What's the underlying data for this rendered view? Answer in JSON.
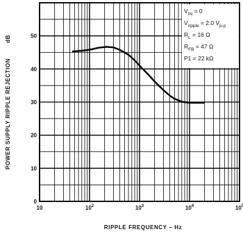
{
  "chart_data": {
    "type": "line",
    "title": "",
    "xlabel": "RIPPLE FREQUENCY – Hz",
    "ylabel": "POWER SUPPLY RIPPLE REJECTION",
    "ylabel_unit": "dB",
    "x_scale": "log",
    "xlim": [
      10,
      100000
    ],
    "ylim": [
      0,
      60
    ],
    "grid": true,
    "x_ticks": [
      {
        "value": 10,
        "base": "10",
        "exp": ""
      },
      {
        "value": 100,
        "base": "10",
        "exp": "2"
      },
      {
        "value": 1000,
        "base": "10",
        "exp": "3"
      },
      {
        "value": 10000,
        "base": "10",
        "exp": "4"
      },
      {
        "value": 100000,
        "base": "10",
        "exp": "5"
      }
    ],
    "y_ticks": [
      "0",
      "10",
      "20",
      "30",
      "40",
      "50"
    ],
    "conditions": [
      {
        "main": "V",
        "sub": "IN",
        "rest": " = 0"
      },
      {
        "main": "V",
        "sub": "ripple",
        "rest": " = 2.0 V",
        "sub2": "p-p"
      },
      {
        "main": "R",
        "sub": "L",
        "rest": " = 16 Ω"
      },
      {
        "main": "R",
        "sub": "FB",
        "rest": " = 47 Ω"
      },
      {
        "main": "P1",
        "sub": "",
        "rest": " = 22 kΩ"
      }
    ],
    "series": [
      {
        "x": [
          45,
          70,
          100,
          150,
          220,
          300,
          400,
          600,
          800,
          1000,
          1500,
          2000,
          3000,
          4000,
          5000,
          7000,
          10000,
          15000,
          20000
        ],
        "y": [
          45.3,
          45.5,
          45.8,
          46.4,
          46.7,
          46.5,
          45.8,
          44.3,
          42.6,
          41.0,
          38.3,
          36.2,
          33.6,
          32.0,
          31.0,
          30.1,
          29.8,
          29.8,
          29.8
        ]
      }
    ]
  }
}
